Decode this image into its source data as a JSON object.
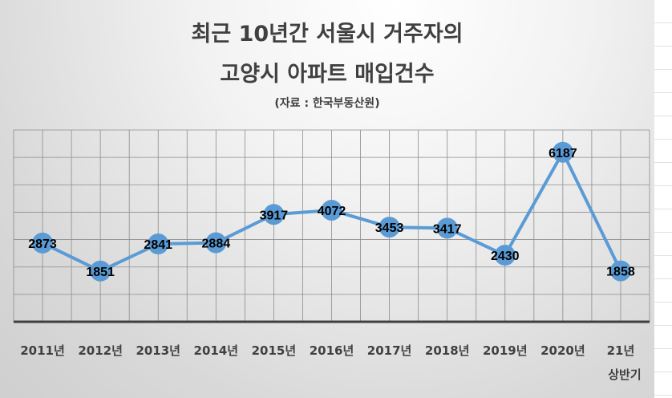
{
  "chart_data": {
    "type": "line",
    "title_lines": [
      "최근 10년간 서울시 거주자의",
      "고양시 아파트 매입건수"
    ],
    "subtitle": "(자료 : 한국부동산원)",
    "categories": [
      "2011년",
      "2012년",
      "2013년",
      "2014년",
      "2015년",
      "2016년",
      "2017년",
      "2018년",
      "2019년",
      "2020년",
      "21년 상반기"
    ],
    "values": [
      2873,
      1851,
      2841,
      2884,
      3917,
      4072,
      3453,
      3417,
      2430,
      6187,
      1858
    ],
    "xlabel": "",
    "ylabel": "",
    "ylim": [
      0,
      7000
    ],
    "ystep": 1000,
    "grid": true,
    "legend": "none",
    "data_labels": true,
    "colors": {
      "line": "#5b9bd5",
      "marker": "#5b9bd5",
      "text": "#404040",
      "label": "#000000",
      "grid": "#8c8c8c",
      "axis": "#404040"
    }
  }
}
